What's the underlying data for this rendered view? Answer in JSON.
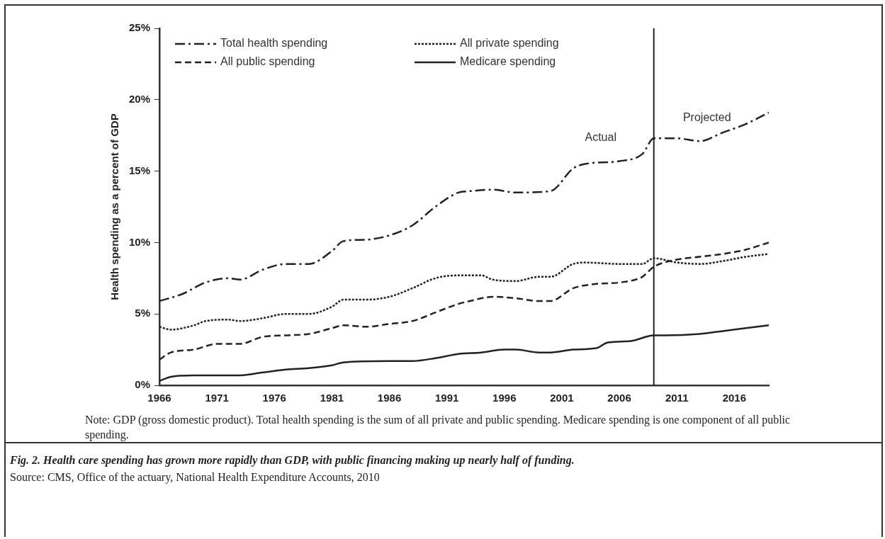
{
  "chart_data": {
    "type": "line",
    "ylabel": "Health spending as a percent of GDP",
    "xlim": [
      1966,
      2019
    ],
    "xticks": [
      1966,
      1971,
      1976,
      1981,
      1986,
      1991,
      1996,
      2001,
      2006,
      2011,
      2016
    ],
    "ylim": [
      0,
      25
    ],
    "yticks": [
      {
        "value": 0,
        "label": "0%"
      },
      {
        "value": 5,
        "label": "5%"
      },
      {
        "value": 10,
        "label": "10%"
      },
      {
        "value": 15,
        "label": "15%"
      },
      {
        "value": 20,
        "label": "20%"
      },
      {
        "value": 25,
        "label": "25%"
      }
    ],
    "grid": false,
    "legend": "top",
    "marker": "none",
    "series": [
      {
        "name": "Total health spending",
        "color": "#222222",
        "line_style": "dashdot",
        "x": [
          1966,
          1968,
          1970,
          1972,
          1973,
          1975,
          1977,
          1979,
          1981,
          1982,
          1984,
          1986,
          1988,
          1990,
          1992,
          1993,
          1995,
          1997,
          2000,
          2002,
          2003,
          2006,
          2008,
          2009,
          2011,
          2013,
          2015,
          2017,
          2019
        ],
        "values": [
          5.9,
          6.4,
          7.2,
          7.5,
          7.4,
          8.1,
          8.5,
          8.5,
          9.4,
          10.1,
          10.2,
          10.5,
          11.2,
          12.5,
          13.5,
          13.6,
          13.7,
          13.5,
          13.6,
          15.2,
          15.5,
          15.7,
          16.2,
          17.3,
          17.3,
          17.1,
          17.7,
          18.3,
          19.1
        ]
      },
      {
        "name": "All private spending",
        "color": "#222222",
        "line_style": "dotted",
        "x": [
          1966,
          1967,
          1969,
          1970,
          1972,
          1973,
          1975,
          1977,
          1979,
          1981,
          1982,
          1984,
          1986,
          1988,
          1990,
          1992,
          1994,
          1995,
          1997,
          1999,
          2000,
          2002,
          2003,
          2006,
          2008,
          2009,
          2011,
          2013,
          2015,
          2017,
          2019
        ],
        "values": [
          4.1,
          3.9,
          4.2,
          4.5,
          4.6,
          4.5,
          4.7,
          5.0,
          5.0,
          5.5,
          6.0,
          6.0,
          6.2,
          6.8,
          7.5,
          7.7,
          7.7,
          7.4,
          7.3,
          7.6,
          7.6,
          8.5,
          8.6,
          8.5,
          8.5,
          8.9,
          8.6,
          8.5,
          8.7,
          9.0,
          9.2
        ]
      },
      {
        "name": "All public spending",
        "color": "#222222",
        "line_style": "dashed",
        "x": [
          1966,
          1967,
          1969,
          1971,
          1973,
          1975,
          1977,
          1979,
          1981,
          1982,
          1984,
          1986,
          1988,
          1990,
          1992,
          1993,
          1995,
          1997,
          1999,
          2000,
          2002,
          2004,
          2006,
          2008,
          2009,
          2011,
          2013,
          2015,
          2017,
          2019
        ],
        "values": [
          1.8,
          2.3,
          2.5,
          2.9,
          2.9,
          3.4,
          3.5,
          3.6,
          4.0,
          4.2,
          4.1,
          4.3,
          4.5,
          5.1,
          5.7,
          5.9,
          6.2,
          6.1,
          5.9,
          5.9,
          6.8,
          7.1,
          7.2,
          7.6,
          8.3,
          8.8,
          9.0,
          9.2,
          9.5,
          10.0
        ]
      },
      {
        "name": "Medicare spending",
        "color": "#222222",
        "line_style": "solid",
        "x": [
          1966,
          1967,
          1969,
          1973,
          1975,
          1977,
          1979,
          1981,
          1982,
          1986,
          1988,
          1990,
          1992,
          1994,
          1996,
          1997,
          1999,
          2000,
          2002,
          2004,
          2005,
          2007,
          2009,
          2010,
          2013,
          2015,
          2017,
          2019
        ],
        "values": [
          0.3,
          0.6,
          0.7,
          0.7,
          0.9,
          1.1,
          1.2,
          1.4,
          1.6,
          1.7,
          1.7,
          1.9,
          2.2,
          2.3,
          2.5,
          2.5,
          2.3,
          2.3,
          2.5,
          2.6,
          3.0,
          3.1,
          3.5,
          3.5,
          3.6,
          3.8,
          4.0,
          4.2
        ]
      }
    ],
    "ref_lines": [
      {
        "axis": "x",
        "value": 2009,
        "color": "#222222",
        "line_style": "solid"
      }
    ],
    "annotations": [
      "Actual",
      "Projected",
      "Note: GDP (gross domestic product). Total health spending is the sum of all private and public spending. Medicare spending is one component of all public spending.",
      "Fig. 2. Health care spending has grown more rapidly than GDP, with public financing making up nearly half of funding.",
      "Source: CMS, Office of the actuary, National Health Expenditure Accounts, 2010"
    ]
  }
}
